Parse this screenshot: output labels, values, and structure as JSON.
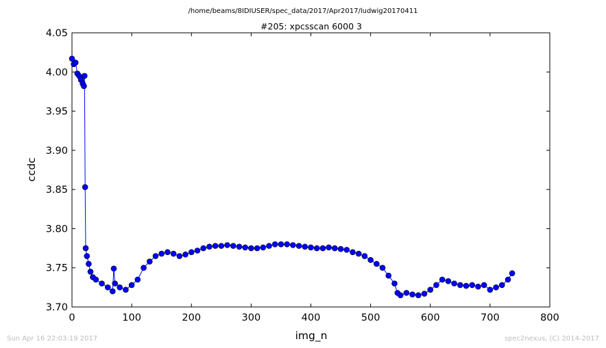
{
  "chart_data": {
    "type": "line",
    "suptitle": "/home/beams/8IDIUSER/spec_data/2017/Apr2017/ludwig20170411",
    "title": "#205: xpcsscan 6000 3",
    "xlabel": "img_n",
    "ylabel": "ccdc",
    "xlim": [
      0,
      800
    ],
    "ylim": [
      3.7,
      4.05
    ],
    "xticks": [
      "0",
      "100",
      "200",
      "300",
      "400",
      "500",
      "600",
      "700",
      "800"
    ],
    "yticks": [
      "3.70",
      "3.75",
      "3.80",
      "3.85",
      "3.90",
      "3.95",
      "4.00",
      "4.05"
    ],
    "grid": false,
    "marker": "circle",
    "line_color": "#0000ff",
    "marker_color": "#0000ff",
    "series": [
      {
        "x": [
          0,
          3,
          6,
          9,
          12,
          15,
          18,
          20,
          21,
          22,
          23,
          25,
          28,
          31,
          35,
          40,
          50,
          60,
          68,
          70,
          72,
          80,
          90,
          100,
          110,
          120,
          130,
          140,
          150,
          160,
          170,
          180,
          190,
          200,
          210,
          220,
          230,
          240,
          250,
          260,
          270,
          280,
          290,
          300,
          310,
          320,
          330,
          340,
          350,
          360,
          370,
          380,
          390,
          400,
          410,
          420,
          430,
          440,
          450,
          460,
          470,
          480,
          490,
          500,
          510,
          520,
          530,
          540,
          545,
          550,
          560,
          570,
          580,
          590,
          600,
          610,
          620,
          630,
          640,
          650,
          660,
          670,
          680,
          690,
          700,
          710,
          720,
          730,
          737
        ],
        "y": [
          4.017,
          4.01,
          4.012,
          3.998,
          3.995,
          3.99,
          3.985,
          3.982,
          3.995,
          3.853,
          3.775,
          3.765,
          3.755,
          3.745,
          3.738,
          3.735,
          3.73,
          3.725,
          3.72,
          3.749,
          3.73,
          3.725,
          3.722,
          3.728,
          3.735,
          3.75,
          3.758,
          3.765,
          3.768,
          3.77,
          3.768,
          3.765,
          3.767,
          3.77,
          3.772,
          3.775,
          3.777,
          3.778,
          3.778,
          3.779,
          3.778,
          3.777,
          3.776,
          3.775,
          3.775,
          3.776,
          3.778,
          3.78,
          3.78,
          3.78,
          3.779,
          3.778,
          3.777,
          3.776,
          3.775,
          3.775,
          3.776,
          3.775,
          3.774,
          3.773,
          3.77,
          3.768,
          3.765,
          3.76,
          3.755,
          3.75,
          3.74,
          3.73,
          3.718,
          3.715,
          3.718,
          3.716,
          3.715,
          3.717,
          3.722,
          3.728,
          3.735,
          3.733,
          3.73,
          3.728,
          3.727,
          3.728,
          3.726,
          3.728,
          3.722,
          3.725,
          3.728,
          3.735,
          3.743
        ]
      }
    ]
  },
  "footer": {
    "timestamp": "Sun Apr 16 22:03:19 2017",
    "credit": "spec2nexus, (C) 2014-2017"
  }
}
